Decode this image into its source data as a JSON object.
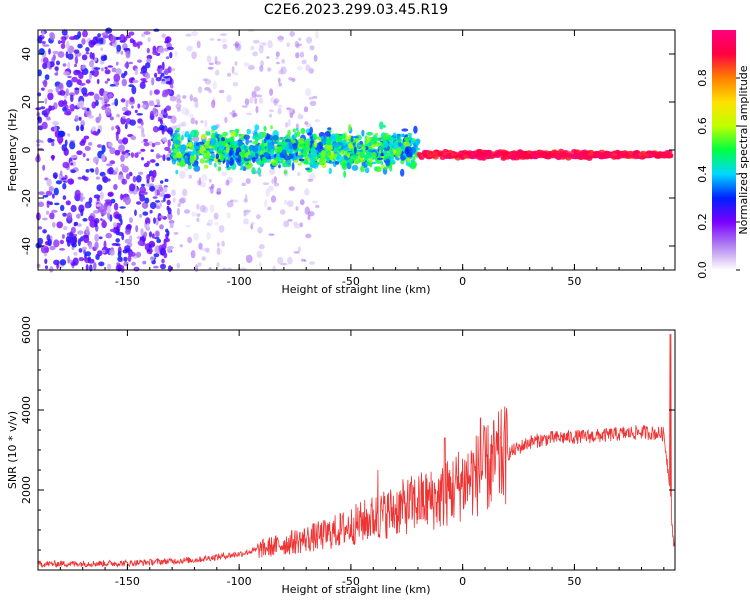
{
  "title": "C2E6.2023.299.03.45.R19",
  "chart_data": [
    {
      "type": "heatmap",
      "xlabel": "Height of straight line (km)",
      "ylabel": "Frequency (Hz)",
      "xlim": [
        -190,
        95
      ],
      "ylim": [
        -50,
        50
      ],
      "x_ticks": [
        -150,
        -100,
        -50,
        0,
        50
      ],
      "y_ticks": [
        -40,
        -20,
        0,
        20,
        40
      ],
      "colorbar": {
        "label": "Normalized spectral amplitude",
        "range": [
          0,
          1
        ],
        "ticks": [
          "0.0",
          "0.2",
          "0.4",
          "0.6",
          "0.8"
        ],
        "colors": [
          "#ffffff",
          "#b184f0",
          "#7a00ff",
          "#0020ff",
          "#00d8ff",
          "#00ff40",
          "#c0ff00",
          "#ffe000",
          "#ff8000",
          "#ff0040",
          "#ff0080"
        ]
      },
      "regions": [
        {
          "x": [
            -190,
            -130
          ],
          "freq_spread": 50,
          "amplitude": [
            0.05,
            0.3
          ]
        },
        {
          "x": [
            -130,
            -65
          ],
          "freq_spread": 50,
          "amplitude": [
            0.03,
            0.15
          ]
        },
        {
          "x": [
            -130,
            -20
          ],
          "freq_center": 0,
          "freq_spread": 8,
          "amplitude": [
            0.3,
            0.6
          ]
        },
        {
          "x": [
            -20,
            93
          ],
          "freq_center": -2,
          "freq_spread": 1.5,
          "amplitude": [
            0.85,
            1.0
          ]
        }
      ]
    },
    {
      "type": "line",
      "xlabel": "Height of straight line (km)",
      "ylabel": "SNR (10 * v/v)",
      "xlim": [
        -190,
        95
      ],
      "ylim": [
        0,
        6000
      ],
      "x_ticks": [
        -150,
        -100,
        -50,
        0,
        50
      ],
      "y_ticks": [
        2000,
        4000,
        6000
      ],
      "color": "#ee3333",
      "envelope": [
        {
          "x": -190,
          "y": 150
        },
        {
          "x": -150,
          "y": 170
        },
        {
          "x": -120,
          "y": 250
        },
        {
          "x": -100,
          "y": 400
        },
        {
          "x": -80,
          "y": 650
        },
        {
          "x": -60,
          "y": 900
        },
        {
          "x": -40,
          "y": 1300
        },
        {
          "x": -20,
          "y": 1700
        },
        {
          "x": -10,
          "y": 1800
        },
        {
          "x": 0,
          "y": 2200
        },
        {
          "x": 10,
          "y": 2500
        },
        {
          "x": 20,
          "y": 2900
        },
        {
          "x": 30,
          "y": 3200
        },
        {
          "x": 40,
          "y": 3300
        },
        {
          "x": 60,
          "y": 3350
        },
        {
          "x": 80,
          "y": 3450
        },
        {
          "x": 90,
          "y": 3400
        },
        {
          "x": 93,
          "y": 2000
        },
        {
          "x": 94,
          "y": 700
        }
      ],
      "spikes": [
        {
          "x": -38,
          "y": 2500
        },
        {
          "x": -8,
          "y": 3300
        },
        {
          "x": 8,
          "y": 3800
        },
        {
          "x": 93,
          "y": 5900
        }
      ]
    }
  ]
}
